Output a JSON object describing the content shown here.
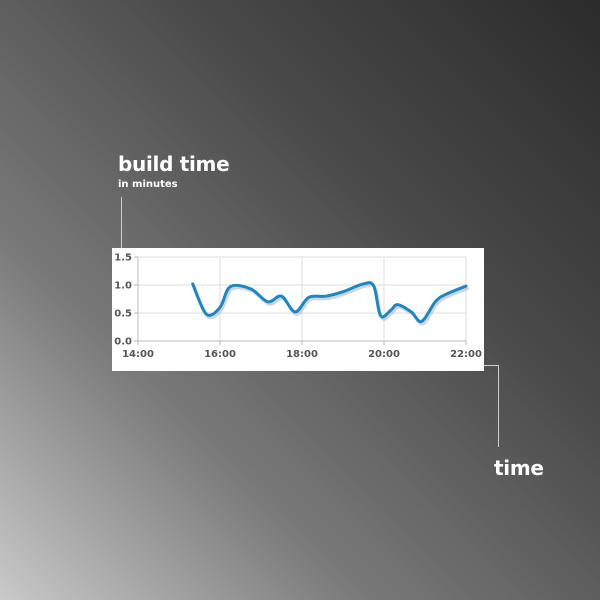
{
  "annotations": {
    "y_title": "build time",
    "y_subtitle": "in minutes",
    "x_title": "time"
  },
  "colors": {
    "line": "#1a87c6",
    "line_shadow": "#b8b8b8",
    "grid": "#dddddd",
    "axis": "#bbbbbb",
    "card": "#ffffff"
  },
  "chart_data": {
    "type": "line",
    "title": "",
    "xlabel": "time",
    "ylabel": "build time",
    "y_unit": "in minutes",
    "xlim": [
      "14:00",
      "22:00"
    ],
    "ylim": [
      0,
      1.5
    ],
    "x_ticks": [
      "14:00",
      "16:00",
      "18:00",
      "20:00",
      "22:00"
    ],
    "y_ticks": [
      "0.0",
      "0.5",
      "1.0",
      "1.5"
    ],
    "grid": true,
    "legend": "none",
    "series": [
      {
        "x": [
          "15:20",
          "15:40",
          "16:00",
          "16:15",
          "16:45",
          "17:10",
          "17:30",
          "17:50",
          "18:10",
          "18:35",
          "19:00",
          "19:30",
          "19:45",
          "19:55",
          "20:10",
          "20:20",
          "20:40",
          "20:55",
          "21:15",
          "21:30",
          "22:00"
        ],
        "values": [
          1.02,
          0.48,
          0.6,
          0.97,
          0.93,
          0.7,
          0.8,
          0.52,
          0.78,
          0.8,
          0.88,
          1.02,
          0.98,
          0.45,
          0.55,
          0.65,
          0.52,
          0.35,
          0.7,
          0.83,
          0.98
        ]
      }
    ]
  }
}
